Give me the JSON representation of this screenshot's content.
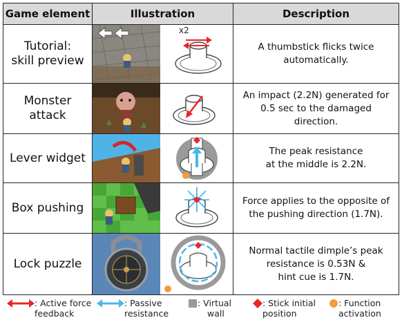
{
  "headers": {
    "element": "Game element",
    "illustration": "Illustration",
    "description": "Description"
  },
  "rows": [
    {
      "element_line1": "Tutorial:",
      "element_line2": "skill preview",
      "diagram_label": "x2",
      "desc_lines": [
        "A thumbstick flicks twice",
        "automatically."
      ]
    },
    {
      "element_line1": "Monster",
      "element_line2": "attack",
      "desc_lines": [
        "An impact (2.2N) generated for",
        "0.5 sec to the damaged",
        "direction."
      ]
    },
    {
      "element_line1": "Lever widget",
      "element_line2": "",
      "desc_lines": [
        "The peak resistance",
        "at the middle is 2.2N."
      ]
    },
    {
      "element_line1": "Box pushing",
      "element_line2": "",
      "desc_lines": [
        "Force applies to the opposite of",
        "the pushing direction (1.7N)."
      ]
    },
    {
      "element_line1": "Lock puzzle",
      "element_line2": "",
      "desc_lines": [
        "Normal tactile dimple’s peak",
        "resistance is 0.53N &",
        "hint cue is 1.7N."
      ]
    }
  ],
  "legend": [
    {
      "icon": "red-arrow-icon",
      "line1": ": Active force",
      "line2": "feedback"
    },
    {
      "icon": "blue-arrow-icon",
      "line1": ": Passive",
      "line2": "resistance"
    },
    {
      "icon": "gray-square-icon",
      "line1": ": Virtual",
      "line2": "wall"
    },
    {
      "icon": "red-diamond-icon",
      "line1": ": Stick initial",
      "line2": "position"
    },
    {
      "icon": "orange-dot-icon",
      "line1": ": Function",
      "line2": "activation"
    }
  ],
  "colors": {
    "active_force": "#e8262a",
    "passive_resistance": "#49b8ea",
    "virtual_wall": "#999999",
    "initial_position": "#e8262a",
    "function_activation": "#f39c3e",
    "header_bg": "#d9d9d9"
  }
}
